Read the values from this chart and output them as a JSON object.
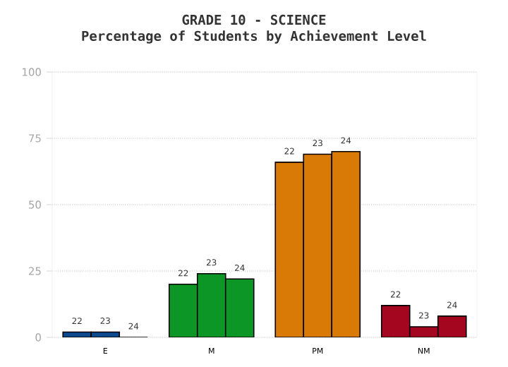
{
  "chart_data": {
    "type": "bar",
    "title": "GRADE 10 - SCIENCE",
    "subtitle": "Percentage of Students by Achievement Level",
    "categories": [
      "E",
      "M",
      "PM",
      "NM"
    ],
    "series": [
      {
        "name": "22",
        "colors": [
          "#0b4a8f",
          "#0c9626",
          "#d97a07",
          "#a4061f"
        ],
        "values": [
          2,
          20,
          66,
          12
        ]
      },
      {
        "name": "23",
        "colors": [
          "#0b4a8f",
          "#0c9626",
          "#d97a07",
          "#a4061f"
        ],
        "values": [
          2,
          24,
          69,
          4
        ]
      },
      {
        "name": "24",
        "colors": [
          "#0b4a8f",
          "#0c9626",
          "#d97a07",
          "#a4061f"
        ],
        "values": [
          0,
          22,
          70,
          8
        ]
      }
    ],
    "ylim": [
      0,
      100
    ],
    "yticks": [
      0,
      25,
      50,
      75,
      100
    ],
    "grid": "y"
  }
}
